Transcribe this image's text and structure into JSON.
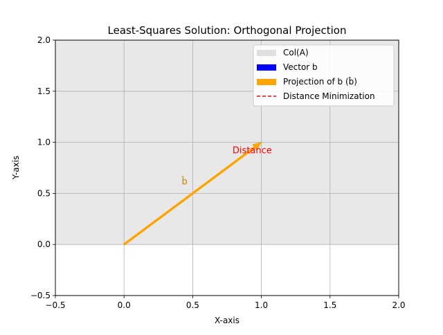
{
  "chart_data": {
    "type": "line",
    "title": "Least-Squares Solution: Orthogonal Projection",
    "xlabel": "X-axis",
    "ylabel": "Y-axis",
    "xlim": [
      -0.5,
      2.0
    ],
    "ylim": [
      -0.5,
      2.0
    ],
    "xticks": [
      -0.5,
      0.0,
      0.5,
      1.0,
      1.5,
      2.0
    ],
    "yticks": [
      -0.5,
      0.0,
      0.5,
      1.0,
      1.5,
      2.0
    ],
    "xtick_labels": [
      "−0.5",
      "0.0",
      "0.5",
      "1.0",
      "1.5",
      "2.0"
    ],
    "ytick_labels": [
      "−0.5",
      "0.0",
      "0.5",
      "1.0",
      "1.5",
      "2.0"
    ],
    "grid": true,
    "legend_position": "top-right",
    "region": {
      "name": "Col(A)",
      "x_range": [
        -0.5,
        2.0
      ],
      "y_range": [
        0.0,
        2.0
      ],
      "color": "#e0e0e0"
    },
    "series": [
      {
        "name": "Vector b",
        "type": "arrow",
        "start": [
          0,
          0
        ],
        "end": [
          1,
          1
        ],
        "color": "#0000ff"
      },
      {
        "name": "Projection of b (b̂)",
        "type": "arrow",
        "start": [
          0,
          0
        ],
        "end": [
          1,
          1
        ],
        "color": "#ffa500"
      },
      {
        "name": "Distance Minimization",
        "type": "dashed-line",
        "start": [
          1,
          1
        ],
        "end": [
          1,
          1
        ],
        "color": "#ff0000"
      }
    ],
    "annotations": [
      {
        "text": "b̂",
        "x": 0.42,
        "y": 0.62,
        "color": "#cc8400"
      },
      {
        "text": "Distance",
        "x": 0.79,
        "y": 0.92,
        "color": "#ff0000"
      }
    ]
  }
}
